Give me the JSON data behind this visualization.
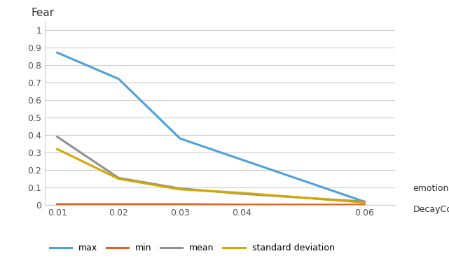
{
  "x": [
    0.01,
    0.02,
    0.03,
    0.04,
    0.06
  ],
  "max": [
    0.87,
    0.72,
    0.38,
    0.26,
    0.02
  ],
  "min": [
    0.005,
    0.005,
    0.005,
    0.003,
    0.002
  ],
  "mean": [
    0.39,
    0.155,
    0.095,
    0.065,
    0.02
  ],
  "std": [
    0.32,
    0.15,
    0.09,
    0.07,
    0.015
  ],
  "ylabel": "Fear",
  "xlabel_line1": "emotion",
  "xlabel_line2": "DecayCoeff",
  "ylim": [
    0,
    1.05
  ],
  "yticks": [
    0,
    0.1,
    0.2,
    0.3,
    0.4,
    0.5,
    0.6,
    0.7,
    0.8,
    0.9,
    1
  ],
  "xticks": [
    0.01,
    0.02,
    0.03,
    0.04,
    0.06
  ],
  "color_max": "#4FA0D8",
  "color_min": "#E06020",
  "color_mean": "#909090",
  "color_std": "#D4A800",
  "legend_labels": [
    "max",
    "min",
    "mean",
    "standard deviation"
  ],
  "background_color": "#FFFFFF",
  "grid_color": "#CCCCCC"
}
